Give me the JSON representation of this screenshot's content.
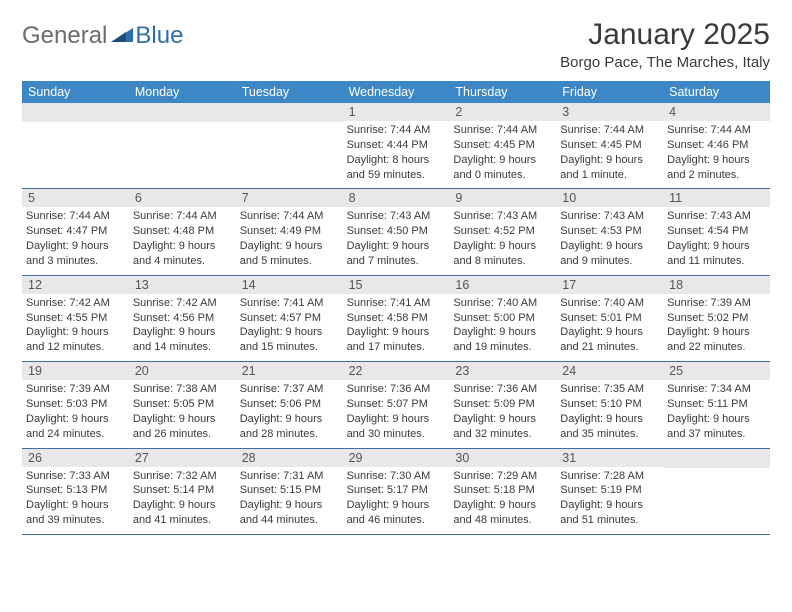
{
  "logo": {
    "word1": "General",
    "word2": "Blue"
  },
  "title": "January 2025",
  "subtitle": "Borgo Pace, The Marches, Italy",
  "colors": {
    "header_bg": "#3d87c7",
    "header_text": "#ffffff",
    "daynum_bg": "#e8e8e8",
    "week_border": "#3d6fa3",
    "text": "#3a3a3a",
    "logo_gray": "#6b6b6b",
    "logo_blue": "#2f6fa8"
  },
  "weekdays": [
    "Sunday",
    "Monday",
    "Tuesday",
    "Wednesday",
    "Thursday",
    "Friday",
    "Saturday"
  ],
  "weeks": [
    [
      {
        "n": "",
        "sr": "",
        "ss": "",
        "dl": ""
      },
      {
        "n": "",
        "sr": "",
        "ss": "",
        "dl": ""
      },
      {
        "n": "",
        "sr": "",
        "ss": "",
        "dl": ""
      },
      {
        "n": "1",
        "sr": "Sunrise: 7:44 AM",
        "ss": "Sunset: 4:44 PM",
        "dl": "Daylight: 8 hours and 59 minutes."
      },
      {
        "n": "2",
        "sr": "Sunrise: 7:44 AM",
        "ss": "Sunset: 4:45 PM",
        "dl": "Daylight: 9 hours and 0 minutes."
      },
      {
        "n": "3",
        "sr": "Sunrise: 7:44 AM",
        "ss": "Sunset: 4:45 PM",
        "dl": "Daylight: 9 hours and 1 minute."
      },
      {
        "n": "4",
        "sr": "Sunrise: 7:44 AM",
        "ss": "Sunset: 4:46 PM",
        "dl": "Daylight: 9 hours and 2 minutes."
      }
    ],
    [
      {
        "n": "5",
        "sr": "Sunrise: 7:44 AM",
        "ss": "Sunset: 4:47 PM",
        "dl": "Daylight: 9 hours and 3 minutes."
      },
      {
        "n": "6",
        "sr": "Sunrise: 7:44 AM",
        "ss": "Sunset: 4:48 PM",
        "dl": "Daylight: 9 hours and 4 minutes."
      },
      {
        "n": "7",
        "sr": "Sunrise: 7:44 AM",
        "ss": "Sunset: 4:49 PM",
        "dl": "Daylight: 9 hours and 5 minutes."
      },
      {
        "n": "8",
        "sr": "Sunrise: 7:43 AM",
        "ss": "Sunset: 4:50 PM",
        "dl": "Daylight: 9 hours and 7 minutes."
      },
      {
        "n": "9",
        "sr": "Sunrise: 7:43 AM",
        "ss": "Sunset: 4:52 PM",
        "dl": "Daylight: 9 hours and 8 minutes."
      },
      {
        "n": "10",
        "sr": "Sunrise: 7:43 AM",
        "ss": "Sunset: 4:53 PM",
        "dl": "Daylight: 9 hours and 9 minutes."
      },
      {
        "n": "11",
        "sr": "Sunrise: 7:43 AM",
        "ss": "Sunset: 4:54 PM",
        "dl": "Daylight: 9 hours and 11 minutes."
      }
    ],
    [
      {
        "n": "12",
        "sr": "Sunrise: 7:42 AM",
        "ss": "Sunset: 4:55 PM",
        "dl": "Daylight: 9 hours and 12 minutes."
      },
      {
        "n": "13",
        "sr": "Sunrise: 7:42 AM",
        "ss": "Sunset: 4:56 PM",
        "dl": "Daylight: 9 hours and 14 minutes."
      },
      {
        "n": "14",
        "sr": "Sunrise: 7:41 AM",
        "ss": "Sunset: 4:57 PM",
        "dl": "Daylight: 9 hours and 15 minutes."
      },
      {
        "n": "15",
        "sr": "Sunrise: 7:41 AM",
        "ss": "Sunset: 4:58 PM",
        "dl": "Daylight: 9 hours and 17 minutes."
      },
      {
        "n": "16",
        "sr": "Sunrise: 7:40 AM",
        "ss": "Sunset: 5:00 PM",
        "dl": "Daylight: 9 hours and 19 minutes."
      },
      {
        "n": "17",
        "sr": "Sunrise: 7:40 AM",
        "ss": "Sunset: 5:01 PM",
        "dl": "Daylight: 9 hours and 21 minutes."
      },
      {
        "n": "18",
        "sr": "Sunrise: 7:39 AM",
        "ss": "Sunset: 5:02 PM",
        "dl": "Daylight: 9 hours and 22 minutes."
      }
    ],
    [
      {
        "n": "19",
        "sr": "Sunrise: 7:39 AM",
        "ss": "Sunset: 5:03 PM",
        "dl": "Daylight: 9 hours and 24 minutes."
      },
      {
        "n": "20",
        "sr": "Sunrise: 7:38 AM",
        "ss": "Sunset: 5:05 PM",
        "dl": "Daylight: 9 hours and 26 minutes."
      },
      {
        "n": "21",
        "sr": "Sunrise: 7:37 AM",
        "ss": "Sunset: 5:06 PM",
        "dl": "Daylight: 9 hours and 28 minutes."
      },
      {
        "n": "22",
        "sr": "Sunrise: 7:36 AM",
        "ss": "Sunset: 5:07 PM",
        "dl": "Daylight: 9 hours and 30 minutes."
      },
      {
        "n": "23",
        "sr": "Sunrise: 7:36 AM",
        "ss": "Sunset: 5:09 PM",
        "dl": "Daylight: 9 hours and 32 minutes."
      },
      {
        "n": "24",
        "sr": "Sunrise: 7:35 AM",
        "ss": "Sunset: 5:10 PM",
        "dl": "Daylight: 9 hours and 35 minutes."
      },
      {
        "n": "25",
        "sr": "Sunrise: 7:34 AM",
        "ss": "Sunset: 5:11 PM",
        "dl": "Daylight: 9 hours and 37 minutes."
      }
    ],
    [
      {
        "n": "26",
        "sr": "Sunrise: 7:33 AM",
        "ss": "Sunset: 5:13 PM",
        "dl": "Daylight: 9 hours and 39 minutes."
      },
      {
        "n": "27",
        "sr": "Sunrise: 7:32 AM",
        "ss": "Sunset: 5:14 PM",
        "dl": "Daylight: 9 hours and 41 minutes."
      },
      {
        "n": "28",
        "sr": "Sunrise: 7:31 AM",
        "ss": "Sunset: 5:15 PM",
        "dl": "Daylight: 9 hours and 44 minutes."
      },
      {
        "n": "29",
        "sr": "Sunrise: 7:30 AM",
        "ss": "Sunset: 5:17 PM",
        "dl": "Daylight: 9 hours and 46 minutes."
      },
      {
        "n": "30",
        "sr": "Sunrise: 7:29 AM",
        "ss": "Sunset: 5:18 PM",
        "dl": "Daylight: 9 hours and 48 minutes."
      },
      {
        "n": "31",
        "sr": "Sunrise: 7:28 AM",
        "ss": "Sunset: 5:19 PM",
        "dl": "Daylight: 9 hours and 51 minutes."
      },
      {
        "n": "",
        "sr": "",
        "ss": "",
        "dl": ""
      }
    ]
  ]
}
